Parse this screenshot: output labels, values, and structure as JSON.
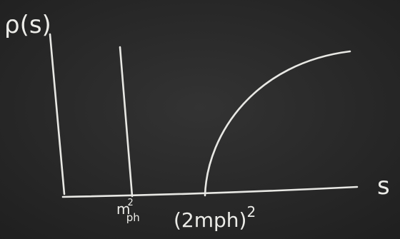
{
  "y_axis_label": "ρ(s)",
  "x_axis_label": "s",
  "tick_labels": [
    {
      "base": "m",
      "sub": "ph",
      "sup": "2"
    },
    {
      "base": "(2mph)",
      "sup": "2"
    }
  ]
}
